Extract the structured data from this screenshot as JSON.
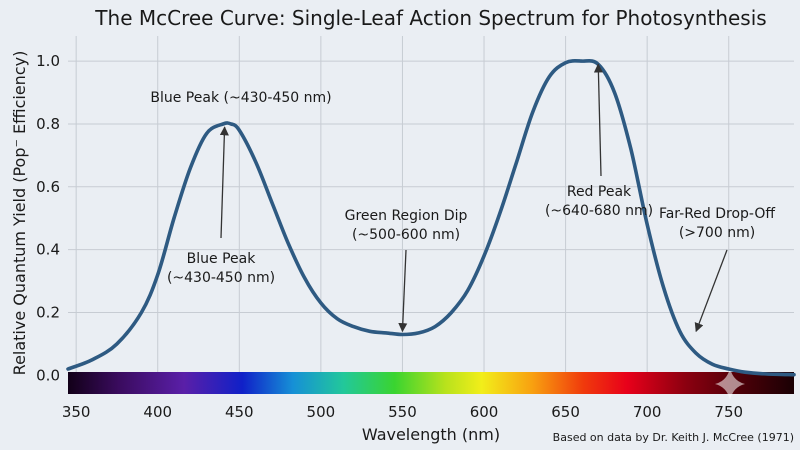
{
  "chart_data": {
    "type": "line",
    "title": "The McCree Curve: Single-Leaf Action Spectrum for Photosynthesis",
    "xlabel": "Wavelength (nm)",
    "ylabel": "Relative Quantum Yield (Pop⁻ Efficiency)",
    "xlim": [
      345,
      790
    ],
    "ylim": [
      -0.05,
      1.08
    ],
    "x_ticks": [
      350,
      400,
      450,
      500,
      550,
      600,
      650,
      700,
      750
    ],
    "y_ticks": [
      0.0,
      0.2,
      0.4,
      0.6,
      0.8,
      1.0
    ],
    "grid": true,
    "line_color": "#2e5a82",
    "series": [
      {
        "x": [
          345,
          360,
          375,
          390,
          400,
          410,
          420,
          430,
          440,
          445,
          450,
          460,
          470,
          480,
          490,
          500,
          510,
          520,
          530,
          540,
          550,
          560,
          570,
          580,
          590,
          600,
          610,
          620,
          630,
          640,
          650,
          660,
          670,
          680,
          690,
          700,
          710,
          720,
          730,
          740,
          750,
          760,
          770,
          780,
          790
        ],
        "y": [
          0.02,
          0.05,
          0.1,
          0.2,
          0.32,
          0.5,
          0.66,
          0.77,
          0.8,
          0.8,
          0.78,
          0.68,
          0.55,
          0.42,
          0.31,
          0.23,
          0.18,
          0.155,
          0.14,
          0.135,
          0.13,
          0.135,
          0.155,
          0.2,
          0.27,
          0.38,
          0.52,
          0.68,
          0.84,
          0.95,
          0.995,
          1.0,
          0.99,
          0.9,
          0.72,
          0.48,
          0.28,
          0.14,
          0.07,
          0.035,
          0.02,
          0.01,
          0.005,
          0.003,
          0.002
        ]
      }
    ],
    "annotations": [
      {
        "text": "Blue Peak (~430-450 nm)"
      },
      {
        "lines": [
          "Blue Peak",
          "(~430-450 nm)"
        ],
        "arrow_to": [
          441,
          0.79
        ]
      },
      {
        "lines": [
          "Green Region Dip",
          "(~500-600 nm)"
        ],
        "arrow_to": [
          550,
          0.14
        ]
      },
      {
        "lines": [
          "Red Peak",
          "(~640-680 nm)"
        ],
        "arrow_to": [
          670,
          0.99
        ]
      },
      {
        "lines": [
          "Far-Red Drop-Off",
          "(>700 nm)"
        ],
        "arrow_to": [
          730,
          0.14
        ]
      }
    ],
    "credit": "Based on data by Dr. Keith J. McCree (1971)"
  }
}
